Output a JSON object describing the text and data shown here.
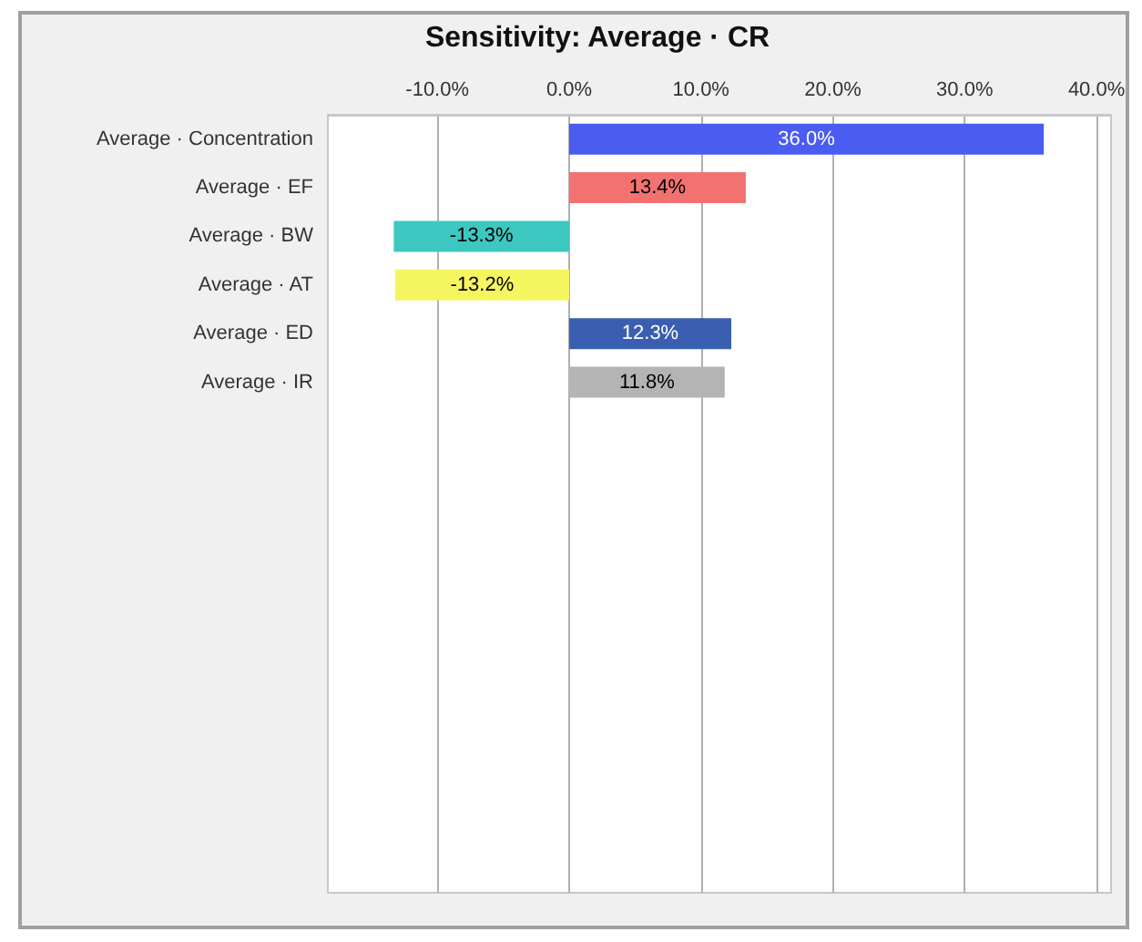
{
  "chart_data": {
    "type": "bar",
    "orientation": "horizontal",
    "title": "Sensitivity: Average · CR",
    "categories": [
      "Average · Concentration",
      "Average · EF",
      "Average · BW",
      "Average · AT",
      "Average · ED",
      "Average · IR"
    ],
    "values": [
      36.0,
      13.4,
      -13.3,
      -13.2,
      12.3,
      11.8
    ],
    "colors": [
      "#4b5cf0",
      "#f27272",
      "#3cc8c0",
      "#f5f560",
      "#3a5fb0",
      "#b4b4b4"
    ],
    "value_labels": [
      "36.0%",
      "13.4%",
      "-13.3%",
      "-13.2%",
      "12.3%",
      "11.8%"
    ],
    "xlim": [
      -18.3,
      41.1
    ],
    "xticks": [
      {
        "value": -10,
        "label": "-10.0%"
      },
      {
        "value": 0,
        "label": "0.0%"
      },
      {
        "value": 10,
        "label": "10.0%"
      },
      {
        "value": 20,
        "label": "20.0%"
      },
      {
        "value": 30,
        "label": "30.0%"
      },
      {
        "value": 40,
        "label": "40.0%"
      }
    ],
    "grid": "x"
  }
}
